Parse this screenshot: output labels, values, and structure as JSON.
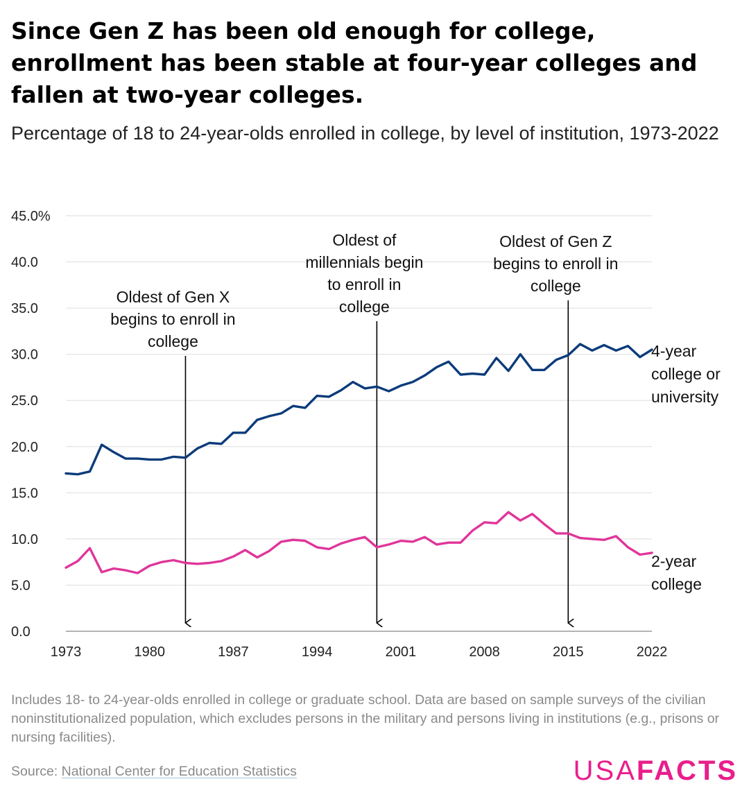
{
  "title": "Since Gen Z has been old enough for college, enrollment has been stable at four-year colleges and fallen at two-year colleges.",
  "subtitle": "Percentage of 18 to 24-year-olds enrolled in college, by level of institution, 1973-2022",
  "footnote": "Includes 18- to 24-year-olds enrolled in college or graduate school. Data are based on sample surveys of the civilian noninstitutionalized population, which excludes persons in the military and persons living in institutions (e.g., prisons or nursing facilities).",
  "source": {
    "prefix": "Source: ",
    "link_text": "National Center for Education Statistics"
  },
  "logo": {
    "usa": "USA",
    "facts": "FACTS",
    "color": "#e91e8c"
  },
  "chart_data": {
    "type": "line",
    "title": "Since Gen Z has been old enough for college, enrollment has been stable at four-year colleges and fallen at two-year colleges.",
    "subtitle": "Percentage of 18 to 24-year-olds enrolled in college, by level of institution, 1973-2022",
    "xlabel": "",
    "ylabel": "",
    "xlim": [
      1973,
      2022
    ],
    "ylim": [
      0,
      45
    ],
    "x_ticks": [
      1973,
      1980,
      1987,
      1994,
      2001,
      2008,
      2015,
      2022
    ],
    "y_ticks": [
      0,
      5,
      10,
      15,
      20,
      25,
      30,
      35,
      40,
      45
    ],
    "y_tick_labels": [
      "0.0",
      "5.0",
      "10.0",
      "15.0",
      "20.0",
      "25.0",
      "30.0",
      "35.0",
      "40.0",
      "45.0%"
    ],
    "grid": "horizontal",
    "legend": "direct labels at right end of lines",
    "x": [
      1973,
      1974,
      1975,
      1976,
      1977,
      1978,
      1979,
      1980,
      1981,
      1982,
      1983,
      1984,
      1985,
      1986,
      1987,
      1988,
      1989,
      1990,
      1991,
      1992,
      1993,
      1994,
      1995,
      1996,
      1997,
      1998,
      1999,
      2000,
      2001,
      2002,
      2003,
      2004,
      2005,
      2006,
      2007,
      2008,
      2009,
      2010,
      2011,
      2012,
      2013,
      2014,
      2015,
      2016,
      2017,
      2018,
      2019,
      2020,
      2021,
      2022
    ],
    "series": [
      {
        "name": "4-year college or university",
        "label_lines": [
          "4-year",
          "college or",
          "university"
        ],
        "color": "#0b3b7a",
        "values": [
          17.1,
          17.0,
          17.3,
          20.2,
          19.4,
          18.7,
          18.7,
          18.6,
          18.6,
          18.9,
          18.8,
          19.8,
          20.4,
          20.3,
          21.5,
          21.5,
          22.9,
          23.3,
          23.6,
          24.4,
          24.2,
          25.5,
          25.4,
          26.1,
          27.0,
          26.3,
          26.5,
          26.0,
          26.6,
          27.0,
          27.7,
          28.6,
          29.2,
          27.8,
          27.9,
          27.8,
          29.6,
          28.2,
          30.0,
          28.3,
          28.3,
          29.4,
          29.9,
          31.1,
          30.4,
          31.0,
          30.4,
          30.9,
          29.7,
          30.5
        ]
      },
      {
        "name": "2-year college",
        "label_lines": [
          "2-year",
          "college"
        ],
        "color": "#e0359a",
        "values": [
          6.9,
          7.6,
          9.0,
          6.4,
          6.8,
          6.6,
          6.3,
          7.1,
          7.5,
          7.7,
          7.4,
          7.3,
          7.4,
          7.6,
          8.1,
          8.8,
          8.0,
          8.7,
          9.7,
          9.9,
          9.8,
          9.1,
          8.9,
          9.5,
          9.9,
          10.2,
          9.1,
          9.4,
          9.8,
          9.7,
          10.2,
          9.4,
          9.6,
          9.6,
          10.9,
          11.8,
          11.7,
          12.9,
          12.0,
          12.7,
          11.6,
          10.6,
          10.6,
          10.1,
          10.0,
          9.9,
          10.3,
          9.1,
          8.3,
          8.5
        ]
      }
    ],
    "annotations": [
      {
        "x": 1983,
        "label_lines": [
          "Oldest of Gen X",
          "begins to enroll in",
          "college"
        ]
      },
      {
        "x": 1999,
        "label_lines": [
          "Oldest of",
          "millennials begin",
          "to enroll in",
          "college"
        ]
      },
      {
        "x": 2015,
        "label_lines": [
          "Oldest of Gen Z",
          "begins to enroll in",
          "college"
        ]
      }
    ]
  }
}
